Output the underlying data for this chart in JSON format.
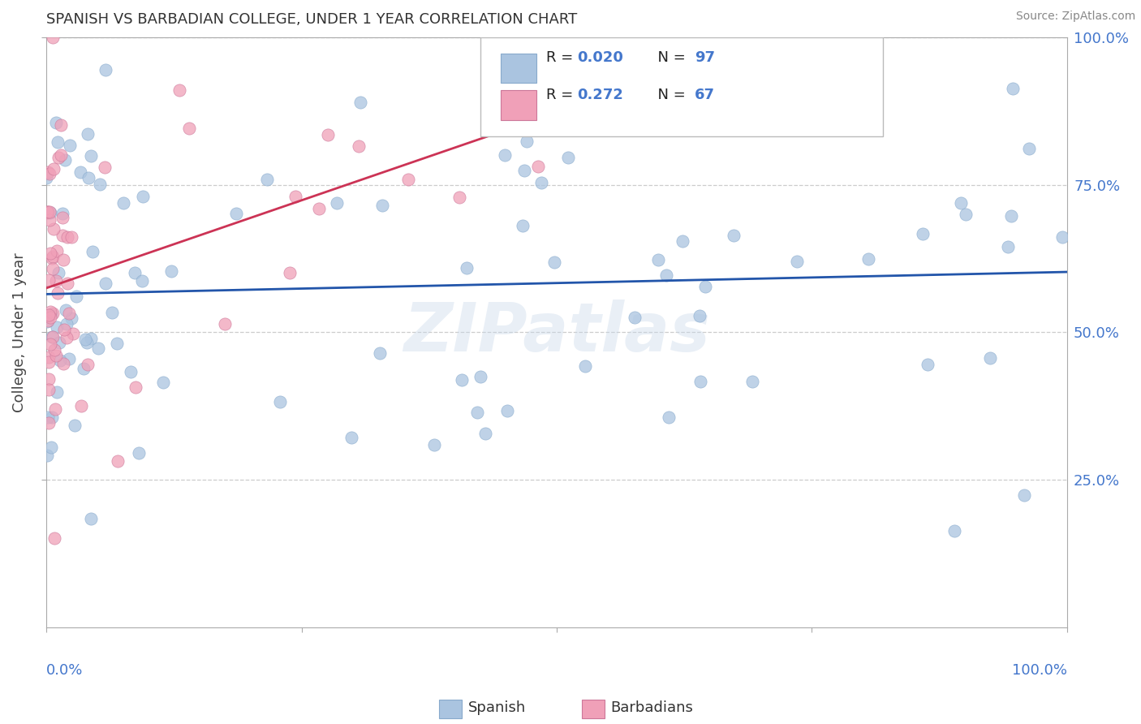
{
  "title": "SPANISH VS BARBADIAN COLLEGE, UNDER 1 YEAR CORRELATION CHART",
  "source": "Source: ZipAtlas.com",
  "ylabel": "College, Under 1 year",
  "r_spanish": "0.020",
  "n_spanish": "97",
  "r_barbadian": "0.272",
  "n_barbadian": "67",
  "spanish_color": "#aac4e0",
  "barbadian_color": "#f0a0b8",
  "trendline_spanish_color": "#2255aa",
  "trendline_barbadian_color": "#cc3355",
  "watermark": "ZIPatlas",
  "background_color": "#ffffff",
  "grid_color": "#cccccc",
  "title_color": "#333333",
  "axis_tick_color": "#4477cc",
  "legend_label_spanish": "Spanish",
  "legend_label_barbadian": "Barbadians",
  "xmin": 0.0,
  "xmax": 1.0,
  "ymin": 0.0,
  "ymax": 1.0,
  "ytick_vals": [
    0.25,
    0.5,
    0.75,
    1.0
  ],
  "ytick_labels": [
    "25.0%",
    "50.0%",
    "75.0%",
    "100.0%"
  ],
  "seed": 12
}
